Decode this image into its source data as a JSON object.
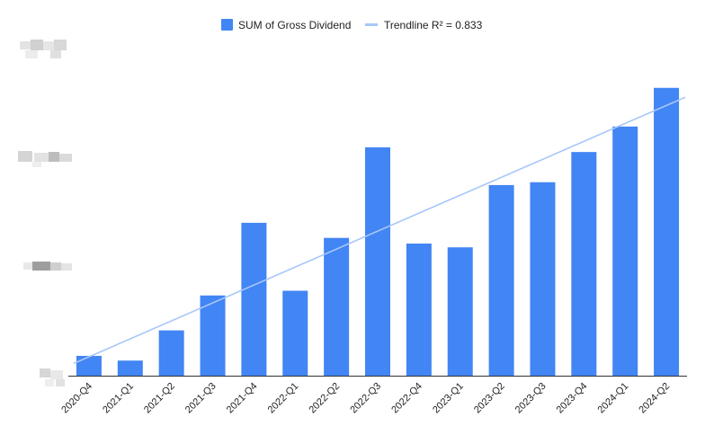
{
  "chart_data": {
    "type": "bar",
    "categories": [
      "2020-Q4",
      "2021-Q1",
      "2021-Q2",
      "2021-Q3",
      "2021-Q4",
      "2022-Q1",
      "2022-Q2",
      "2022-Q3",
      "2022-Q4",
      "2023-Q1",
      "2023-Q2",
      "2023-Q3",
      "2023-Q4",
      "2024-Q1",
      "2024-Q2"
    ],
    "series": [
      {
        "name": "SUM of Gross Dividend",
        "values": [
          21,
          16,
          48,
          85,
          162,
          90,
          146,
          242,
          140,
          136,
          202,
          205,
          237,
          264,
          305
        ],
        "color": "#4285F4"
      }
    ],
    "trendline": {
      "label": "Trendline R² = 0.833",
      "color": "#A8C7FA",
      "start": 13,
      "end": 295
    },
    "ylim": [
      0,
      360
    ],
    "legend_position": "top-center",
    "y_tick_labels": "redacted",
    "grid": false
  }
}
